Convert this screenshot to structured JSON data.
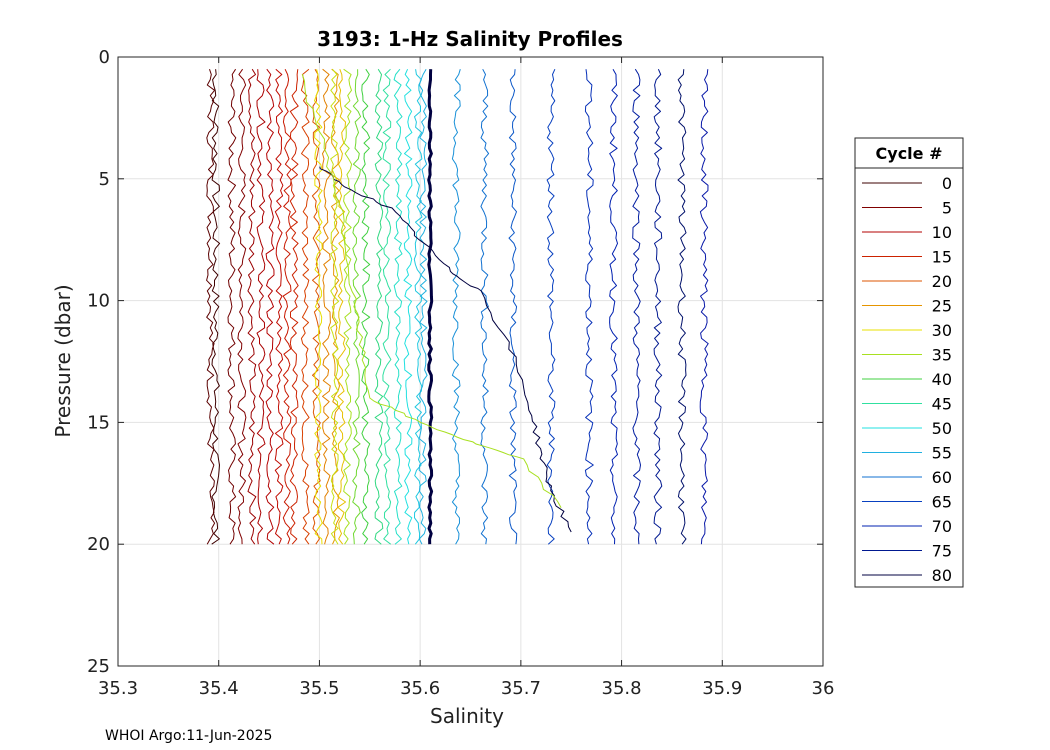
{
  "chart_data": {
    "type": "line",
    "title": "3193: 1-Hz Salinity Profiles",
    "xlabel": "Salinity",
    "ylabel": "Pressure (dbar)",
    "xlim": [
      35.3,
      36
    ],
    "ylim": [
      0,
      25
    ],
    "y_reversed": true,
    "x_ticks": [
      "35.3",
      "35.4",
      "35.5",
      "35.6",
      "35.7",
      "35.8",
      "35.9",
      "36"
    ],
    "x_tick_values": [
      35.3,
      35.4,
      35.5,
      35.6,
      35.7,
      35.8,
      35.9,
      36.0
    ],
    "y_ticks": [
      "0",
      "5",
      "10",
      "15",
      "20",
      "25"
    ],
    "y_tick_values": [
      0,
      5,
      10,
      15,
      20,
      25
    ],
    "grid": true,
    "legend_position": "right",
    "legend_title": "Cycle #",
    "legend_entries": [
      {
        "label": "0",
        "color": "#3d0000"
      },
      {
        "label": "5",
        "color": "#800000"
      },
      {
        "label": "10",
        "color": "#b30000"
      },
      {
        "label": "15",
        "color": "#cc2200"
      },
      {
        "label": "20",
        "color": "#dd5500"
      },
      {
        "label": "25",
        "color": "#e69500"
      },
      {
        "label": "30",
        "color": "#e8e000"
      },
      {
        "label": "35",
        "color": "#a8e020"
      },
      {
        "label": "40",
        "color": "#40d040"
      },
      {
        "label": "45",
        "color": "#30e0a0"
      },
      {
        "label": "50",
        "color": "#20e0e0"
      },
      {
        "label": "55",
        "color": "#20b0e0"
      },
      {
        "label": "60",
        "color": "#1070d0"
      },
      {
        "label": "65",
        "color": "#0840c0"
      },
      {
        "label": "70",
        "color": "#0020b0"
      },
      {
        "label": "75",
        "color": "#001890"
      },
      {
        "label": "80",
        "color": "#000040"
      }
    ],
    "series": [
      {
        "cycle": 0,
        "color": "#3d0000",
        "x_mean": 35.397,
        "p_min": 0.5,
        "p_max": 20,
        "width": 1
      },
      {
        "cycle": 2,
        "color": "#5a0000",
        "x_mean": 35.392,
        "p_min": 0.5,
        "p_max": 20,
        "width": 1
      },
      {
        "cycle": 4,
        "color": "#700000",
        "x_mean": 35.413,
        "p_min": 0.5,
        "p_max": 20,
        "width": 1
      },
      {
        "cycle": 5,
        "color": "#800000",
        "x_mean": 35.423,
        "p_min": 0.5,
        "p_max": 20,
        "width": 1
      },
      {
        "cycle": 7,
        "color": "#9a0000",
        "x_mean": 35.433,
        "p_min": 0.5,
        "p_max": 20,
        "width": 1
      },
      {
        "cycle": 9,
        "color": "#aa0000",
        "x_mean": 35.442,
        "p_min": 0.5,
        "p_max": 20,
        "width": 1
      },
      {
        "cycle": 10,
        "color": "#b30000",
        "x_mean": 35.451,
        "p_min": 0.5,
        "p_max": 20,
        "width": 1
      },
      {
        "cycle": 12,
        "color": "#c00a00",
        "x_mean": 35.46,
        "p_min": 0.5,
        "p_max": 20,
        "width": 1
      },
      {
        "cycle": 14,
        "color": "#c81800",
        "x_mean": 35.468,
        "p_min": 0.5,
        "p_max": 20,
        "width": 1
      },
      {
        "cycle": 15,
        "color": "#cc2200",
        "x_mean": 35.475,
        "p_min": 0.5,
        "p_max": 20,
        "width": 1
      },
      {
        "cycle": 18,
        "color": "#d84000",
        "x_mean": 35.486,
        "p_min": 0.5,
        "p_max": 20,
        "width": 1
      },
      {
        "cycle": 20,
        "color": "#dd5500",
        "x_mean": 35.497,
        "p_min": 0.5,
        "p_max": 20,
        "width": 1
      },
      {
        "cycle": 23,
        "color": "#e28000",
        "x_mean": 35.507,
        "p_min": 0.5,
        "p_max": 20,
        "width": 1
      },
      {
        "cycle": 25,
        "color": "#e69500",
        "x_mean": 35.516,
        "p_min": 0.5,
        "p_max": 20,
        "width": 1
      },
      {
        "cycle": 28,
        "color": "#e8c000",
        "x_mean": 35.522,
        "p_min": 0.5,
        "p_max": 20,
        "width": 1
      },
      {
        "cycle": 30,
        "color": "#e8e000",
        "x_mean": 35.499,
        "p_min": 0.5,
        "p_max": 20,
        "width": 1
      },
      {
        "cycle": 33,
        "color": "#c8e010",
        "x_mean": 35.515,
        "p_min": 0.5,
        "p_max": 20,
        "width": 1
      },
      {
        "cycle": 35,
        "color": "#a8e020",
        "x_mean": 35.528,
        "p_min": 0.5,
        "p_max": 20,
        "width": 1
      },
      {
        "cycle": 38,
        "color": "#70d830",
        "x_mean": 35.537,
        "p_min": 0.5,
        "p_max": 20,
        "width": 1
      },
      {
        "cycle": 40,
        "color": "#40d040",
        "x_mean": 35.546,
        "p_min": 0.5,
        "p_max": 20,
        "width": 1
      },
      {
        "cycle": 43,
        "color": "#30d880",
        "x_mean": 35.559,
        "p_min": 0.5,
        "p_max": 20,
        "width": 1
      },
      {
        "cycle": 45,
        "color": "#30e0a0",
        "x_mean": 35.567,
        "p_min": 0.5,
        "p_max": 20,
        "width": 1
      },
      {
        "cycle": 48,
        "color": "#25e0c8",
        "x_mean": 35.578,
        "p_min": 0.5,
        "p_max": 20,
        "width": 1
      },
      {
        "cycle": 50,
        "color": "#20e0e0",
        "x_mean": 35.588,
        "p_min": 0.5,
        "p_max": 20,
        "width": 1
      },
      {
        "cycle": 53,
        "color": "#20c8e0",
        "x_mean": 35.598,
        "p_min": 0.5,
        "p_max": 20,
        "width": 1
      },
      {
        "cycle": 55,
        "color": "#20b0e0",
        "x_mean": 35.603,
        "p_min": 0.5,
        "p_max": 20,
        "width": 1
      },
      {
        "cycle": 57,
        "color": "#1890d8",
        "x_mean": 35.636,
        "p_min": 0.5,
        "p_max": 20,
        "width": 1
      },
      {
        "cycle": 60,
        "color": "#1070d0",
        "x_mean": 35.664,
        "p_min": 0.5,
        "p_max": 20,
        "width": 1
      },
      {
        "cycle": 62,
        "color": "#0c58c8",
        "x_mean": 35.692,
        "p_min": 0.5,
        "p_max": 20,
        "width": 1
      },
      {
        "cycle": 65,
        "color": "#0840c0",
        "x_mean": 35.73,
        "p_min": 0.5,
        "p_max": 20,
        "width": 1
      },
      {
        "cycle": 67,
        "color": "#0630b8",
        "x_mean": 35.768,
        "p_min": 0.5,
        "p_max": 20,
        "width": 1
      },
      {
        "cycle": 70,
        "color": "#0020b0",
        "x_mean": 35.792,
        "p_min": 0.5,
        "p_max": 20,
        "width": 1
      },
      {
        "cycle": 72,
        "color": "#001ca0",
        "x_mean": 35.815,
        "p_min": 0.5,
        "p_max": 20,
        "width": 1
      },
      {
        "cycle": 75,
        "color": "#001890",
        "x_mean": 35.836,
        "p_min": 0.5,
        "p_max": 20,
        "width": 1
      },
      {
        "cycle": 77,
        "color": "#00106a",
        "x_mean": 35.86,
        "p_min": 0.5,
        "p_max": 20,
        "width": 1
      },
      {
        "cycle": 79,
        "color": "#0818a8",
        "x_mean": 35.882,
        "p_min": 0.5,
        "p_max": 20,
        "width": 1
      },
      {
        "cycle": 80,
        "color": "#000040",
        "x_mean": 35.61,
        "p_min": 0.5,
        "p_max": 20,
        "width": 3
      }
    ],
    "sloping_profiles": [
      {
        "color": "#000040",
        "points": [
          [
            35.5,
            4.5
          ],
          [
            35.52,
            5.2
          ],
          [
            35.57,
            6.2
          ],
          [
            35.6,
            7.5
          ],
          [
            35.63,
            8.8
          ],
          [
            35.66,
            9.6
          ],
          [
            35.69,
            12.0
          ],
          [
            35.71,
            14.5
          ],
          [
            35.72,
            16.3
          ],
          [
            35.73,
            17.8
          ],
          [
            35.75,
            19.5
          ]
        ]
      },
      {
        "color": "#a8e020",
        "points": [
          [
            35.48,
            0.7
          ],
          [
            35.5,
            3.0
          ],
          [
            35.52,
            6.0
          ],
          [
            35.53,
            9.0
          ],
          [
            35.54,
            11.5
          ],
          [
            35.55,
            14.0
          ],
          [
            35.6,
            15.0
          ],
          [
            35.65,
            15.8
          ],
          [
            35.7,
            16.5
          ],
          [
            35.74,
            18.5
          ]
        ]
      }
    ]
  },
  "footer": "WHOI Argo:11-Jun-2025"
}
